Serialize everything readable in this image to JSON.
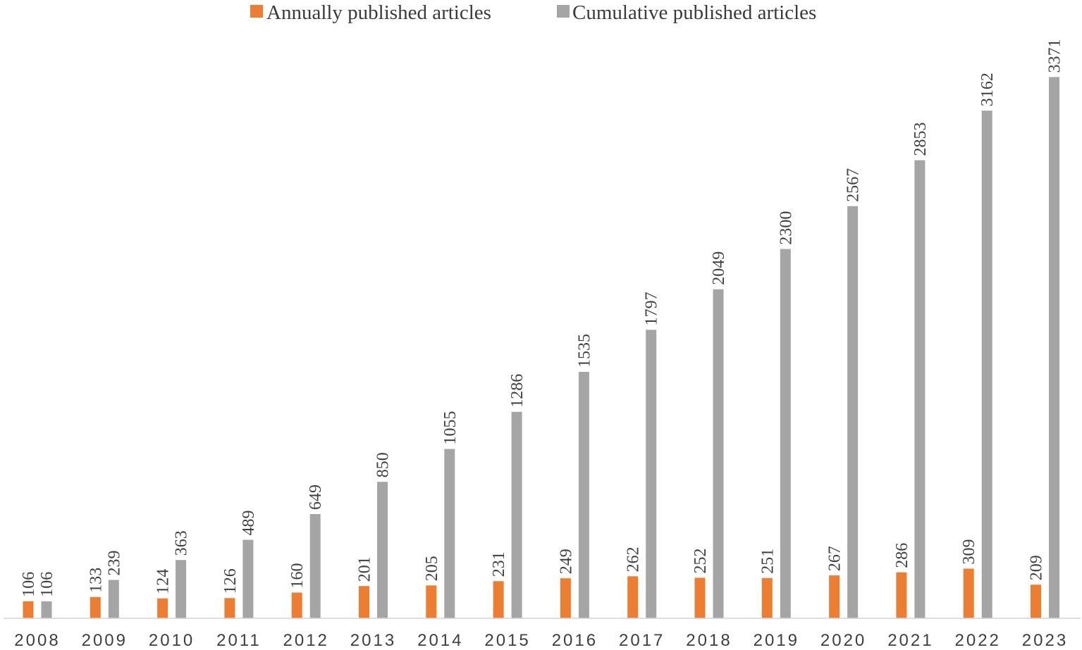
{
  "chart_data": {
    "type": "bar",
    "title": "",
    "xlabel": "",
    "ylabel": "",
    "ylim": [
      0,
      3500
    ],
    "grid": false,
    "legend_position": "top-center",
    "categories": [
      "2008",
      "2009",
      "2010",
      "2011",
      "2012",
      "2013",
      "2014",
      "2015",
      "2016",
      "2017",
      "2018",
      "2019",
      "2020",
      "2021",
      "2022",
      "2023"
    ],
    "series": [
      {
        "name": "Annually published articles",
        "color": "#ED7D31",
        "values": [
          106,
          133,
          124,
          126,
          160,
          201,
          205,
          231,
          249,
          262,
          252,
          251,
          267,
          286,
          309,
          209
        ]
      },
      {
        "name": "Cumulative published articles",
        "color": "#A5A5A5",
        "values": [
          106,
          239,
          363,
          489,
          649,
          850,
          1055,
          1286,
          1535,
          1797,
          2049,
          2300,
          2567,
          2853,
          3162,
          3371
        ]
      }
    ]
  }
}
